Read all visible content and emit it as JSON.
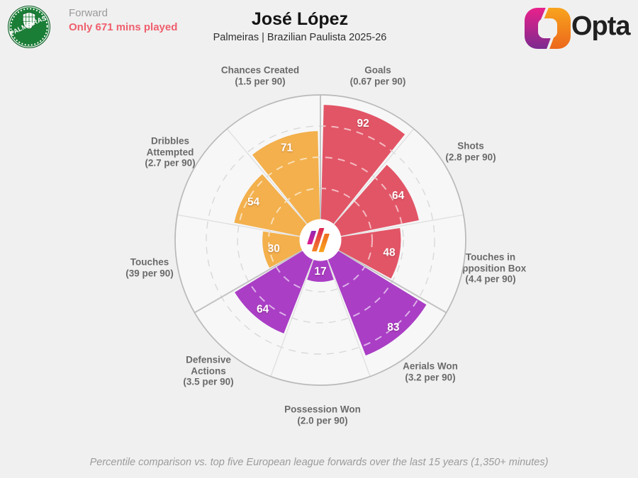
{
  "header": {
    "badge_text": "PALMEIRAS",
    "position": "Forward",
    "warning": "Only 671 mins played",
    "title": "José López",
    "subtitle": "Palmeiras | Brazilian Paulista 2025-26",
    "brand": "Opta"
  },
  "footer": {
    "note": "Percentile comparison vs. top five European league forwards over the last 15 years (1,350+ minutes)"
  },
  "chart_data": {
    "type": "pie",
    "subtype": "percentile-pizza",
    "scale": [
      0,
      100
    ],
    "rings": [
      25,
      50,
      75
    ],
    "start_angle_deg": 0,
    "slice_span_deg": 40,
    "axes": [
      {
        "label": "Goals\n(0.67 per 90)",
        "stat": "Goals",
        "per90": "0.67",
        "value": 92,
        "group": "attacking"
      },
      {
        "label": "Shots\n(2.8 per 90)",
        "stat": "Shots",
        "per90": "2.8",
        "value": 64,
        "group": "attacking"
      },
      {
        "label": "Touches in\nOpposition Box\n(4.4 per 90)",
        "stat": "Touches in Opposition Box",
        "per90": "4.4",
        "value": 48,
        "group": "attacking"
      },
      {
        "label": "Aerials Won\n(3.2 per 90)",
        "stat": "Aerials Won",
        "per90": "3.2",
        "value": 83,
        "group": "defending"
      },
      {
        "label": "Possession Won\n(2.0 per 90)",
        "stat": "Possession Won",
        "per90": "2.0",
        "value": 17,
        "group": "defending"
      },
      {
        "label": "Defensive\nActions\n(3.5 per 90)",
        "stat": "Defensive Actions",
        "per90": "3.5",
        "value": 64,
        "group": "defending"
      },
      {
        "label": "Touches\n(39 per 90)",
        "stat": "Touches",
        "per90": "39",
        "value": 30,
        "group": "possession"
      },
      {
        "label": "Dribbles\nAttempted\n(2.7 per 90)",
        "stat": "Dribbles Attempted",
        "per90": "2.7",
        "value": 54,
        "group": "possession"
      },
      {
        "label": "Chances Created\n(1.5 per 90)",
        "stat": "Chances Created",
        "per90": "1.5",
        "value": 71,
        "group": "possession"
      }
    ],
    "group_colors": {
      "attacking": "#e25566",
      "defending": "#aa3ec5",
      "possession": "#f3b04c"
    },
    "colors": {
      "page_bg": "#f0f0f0",
      "plot_bg": "#f7f7f8",
      "outline": "#b9b9b9",
      "ring_dash": "#d9d9d9",
      "warning_text": "#ef5f6d",
      "badge_green": "#1b7e37"
    }
  }
}
